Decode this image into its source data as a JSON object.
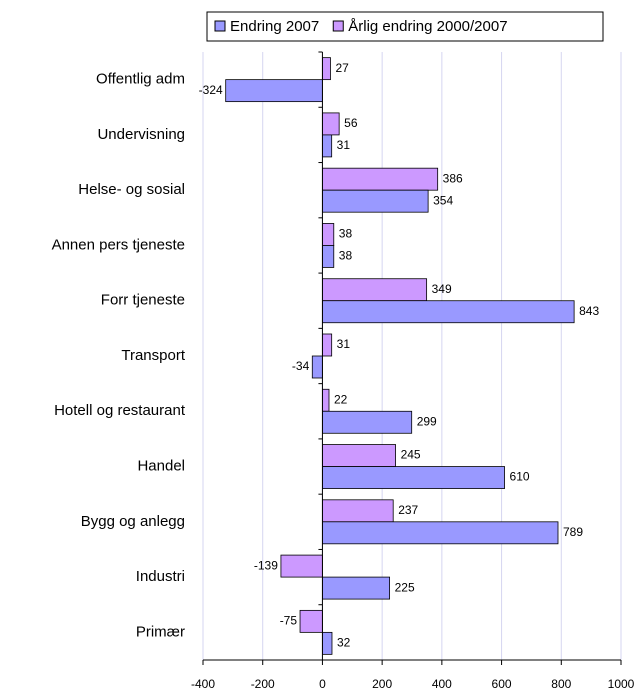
{
  "chart_data": {
    "type": "hbar",
    "categories": [
      "Offentlig adm",
      "Undervisning",
      "Helse- og sosial",
      "Annen pers tjeneste",
      "Forr tjeneste",
      "Transport",
      "Hotell og restaurant",
      "Handel",
      "Bygg og anlegg",
      "Industri",
      "Primær"
    ],
    "series": [
      {
        "name": "Endring 2007",
        "color": "#9999ff",
        "values": [
          -324,
          31,
          354,
          38,
          843,
          -34,
          299,
          610,
          789,
          225,
          32
        ]
      },
      {
        "name": "Årlig endring 2000/2007",
        "color": "#cc99ff",
        "values": [
          27,
          56,
          386,
          38,
          349,
          31,
          22,
          245,
          237,
          -139,
          -75
        ]
      }
    ],
    "xlim": [
      -400,
      1000
    ],
    "xticks": [
      -400,
      -200,
      0,
      200,
      400,
      600,
      800,
      1000
    ],
    "grid": true
  }
}
